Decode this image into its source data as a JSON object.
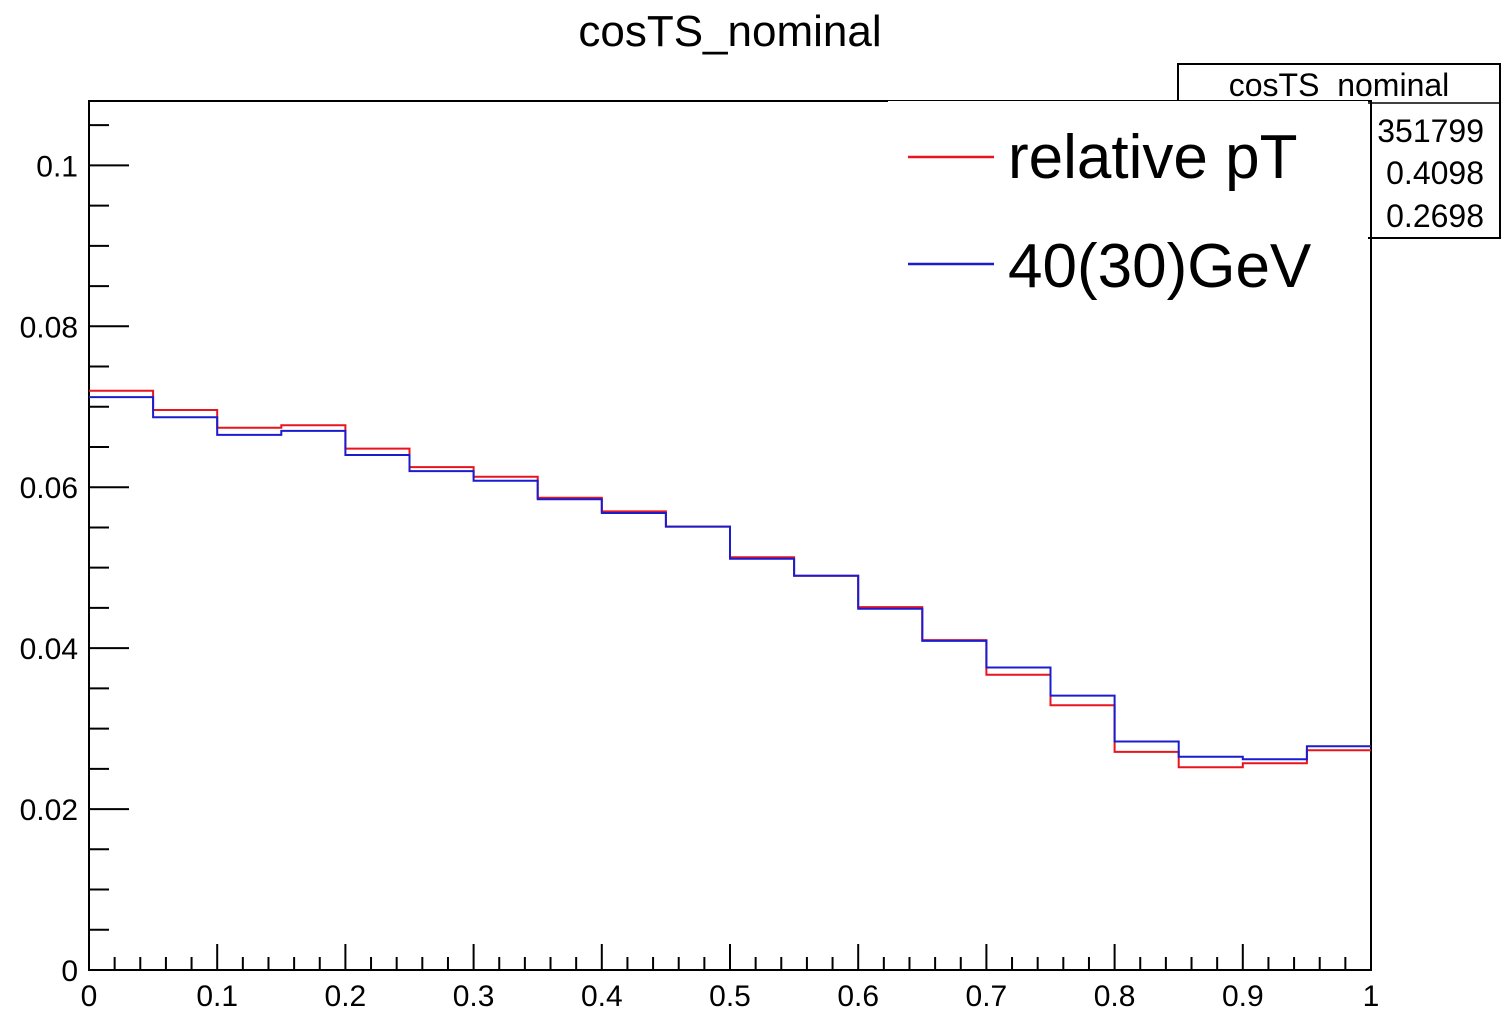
{
  "chart_data": {
    "type": "line",
    "title": "cosTS_nominal",
    "xlabel": "",
    "ylabel": "",
    "xlim": [
      0,
      1
    ],
    "ylim": [
      0,
      0.108
    ],
    "x_ticks": [
      "0",
      "0.1",
      "0.2",
      "0.3",
      "0.4",
      "0.5",
      "0.6",
      "0.7",
      "0.8",
      "0.9",
      "1"
    ],
    "y_ticks": [
      "0",
      "0.02",
      "0.04",
      "0.06",
      "0.08",
      "0.1"
    ],
    "bin_edges": [
      0,
      0.05,
      0.1,
      0.15,
      0.2,
      0.25,
      0.3,
      0.35,
      0.4,
      0.45,
      0.5,
      0.55,
      0.6,
      0.65,
      0.7,
      0.75,
      0.8,
      0.85,
      0.9,
      0.95,
      1.0
    ],
    "series": [
      {
        "name": "relative pT",
        "color": "#e8141e",
        "values": [
          0.072,
          0.0696,
          0.0674,
          0.0677,
          0.0648,
          0.0625,
          0.0613,
          0.0587,
          0.057,
          0.0551,
          0.0513,
          0.049,
          0.0451,
          0.041,
          0.0367,
          0.0329,
          0.0271,
          0.0252,
          0.0257,
          0.0273
        ]
      },
      {
        "name": "40(30)GeV",
        "color": "#1c1ccf",
        "values": [
          0.0712,
          0.0687,
          0.0665,
          0.067,
          0.064,
          0.062,
          0.0608,
          0.0585,
          0.0568,
          0.0551,
          0.0511,
          0.049,
          0.0449,
          0.0409,
          0.0376,
          0.0341,
          0.0284,
          0.0265,
          0.0262,
          0.0278
        ]
      }
    ],
    "grid": false,
    "legend_position": "top-right"
  },
  "stats_box": {
    "title": "cosTS_nominal",
    "lines": [
      "351799",
      "0.4098",
      "0.2698"
    ]
  }
}
